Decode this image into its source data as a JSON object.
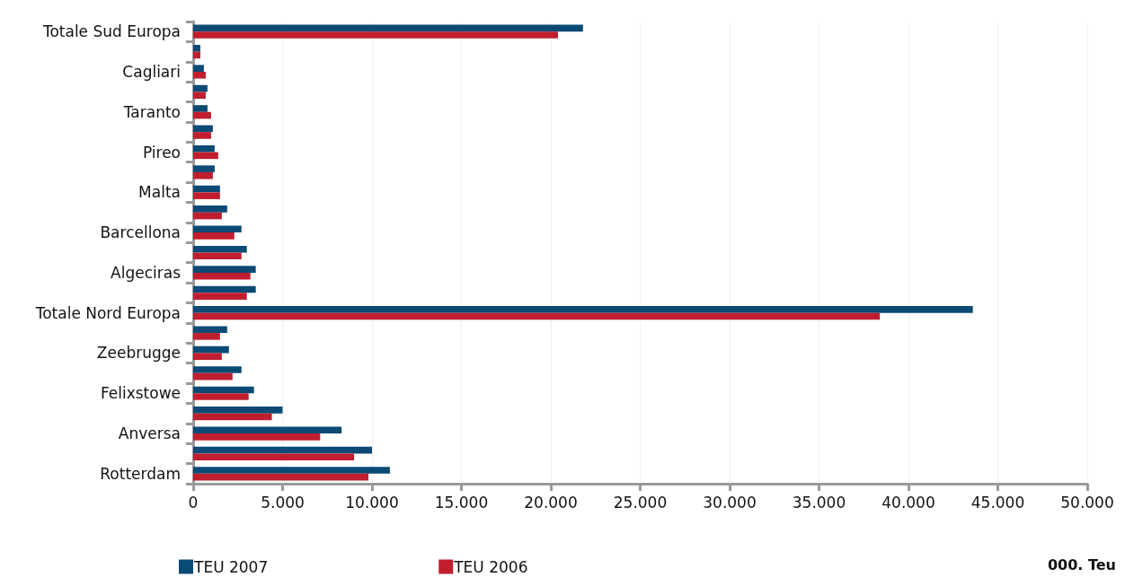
{
  "chart_data": {
    "type": "bar",
    "orientation": "horizontal",
    "categories": [
      "Totale Sud Europa",
      null,
      "Cagliari",
      null,
      "Taranto",
      null,
      "Pireo",
      null,
      "Malta",
      null,
      "Barcellona",
      null,
      "Algeciras",
      null,
      "Totale Nord Europa",
      null,
      "Zeebrugge",
      null,
      "Felixstowe",
      null,
      "Anversa",
      null,
      "Rotterdam"
    ],
    "series": [
      {
        "name": "TEU 2007",
        "color": "#0b4a75",
        "values": [
          21800,
          400,
          600,
          800,
          800,
          1100,
          1200,
          1200,
          1500,
          1900,
          2700,
          3000,
          3500,
          3500,
          43600,
          1900,
          2000,
          2700,
          3400,
          5000,
          8300,
          10000,
          11000
        ]
      },
      {
        "name": "TEU 2006",
        "color": "#c01e2e",
        "values": [
          20400,
          400,
          700,
          700,
          1000,
          1000,
          1400,
          1100,
          1500,
          1600,
          2300,
          2700,
          3200,
          3000,
          38400,
          1500,
          1600,
          2200,
          3100,
          4400,
          7100,
          9000,
          9800
        ]
      }
    ],
    "xlim": [
      0,
      50000
    ],
    "xticks": [
      {
        "value": 0,
        "label": "0"
      },
      {
        "value": 5000,
        "label": "5.000"
      },
      {
        "value": 10000,
        "label": "10.000"
      },
      {
        "value": 15000,
        "label": "15.000"
      },
      {
        "value": 20000,
        "label": "20.000"
      },
      {
        "value": 25000,
        "label": "25.000"
      },
      {
        "value": 30000,
        "label": "30.000"
      },
      {
        "value": 35000,
        "label": "35.000"
      },
      {
        "value": 40000,
        "label": "40.000"
      },
      {
        "value": 45000,
        "label": "45.000"
      },
      {
        "value": 50000,
        "label": "50.000"
      }
    ],
    "grid": "x",
    "legend": "bottom left",
    "annotations": [
      "000. Teu"
    ]
  }
}
